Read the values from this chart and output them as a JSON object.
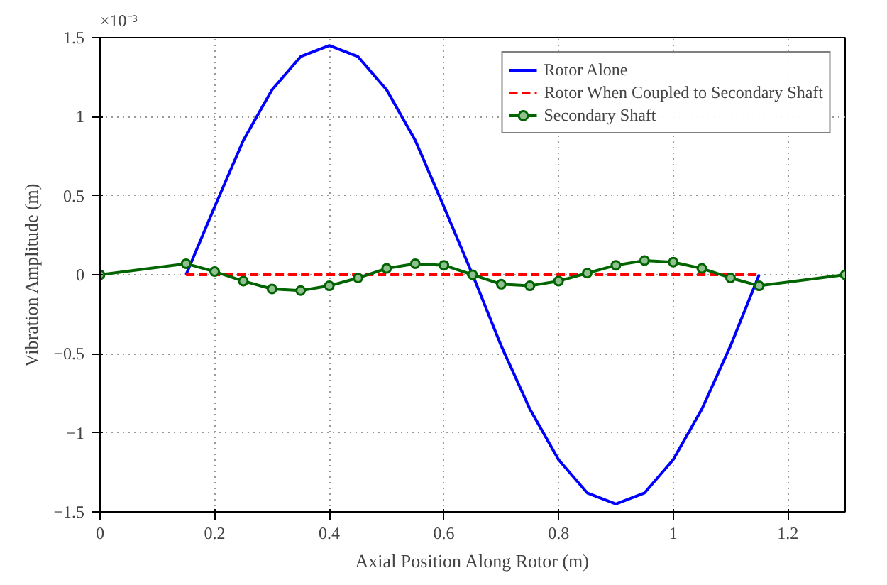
{
  "chart_data": {
    "type": "line",
    "xlabel": "Axial Position Along Rotor (m)",
    "ylabel": "Vibration Amplitude (m)",
    "annotations": [
      "×10⁻³"
    ],
    "xlim": [
      0,
      1.3
    ],
    "xticks": [
      0,
      0.2,
      0.4,
      0.6,
      0.8,
      1,
      1.2
    ],
    "ylim": [
      -1.5,
      1.5
    ],
    "yticks": [
      -1.5,
      -1,
      -0.5,
      0,
      0.5,
      1,
      1.5
    ],
    "grid": true,
    "legend": "top right",
    "series": [
      {
        "name": "Rotor Alone",
        "color": "#0000ff",
        "marker": "none",
        "line_style": "solid",
        "x": [
          0.15,
          0.2,
          0.25,
          0.3,
          0.35,
          0.4,
          0.45,
          0.5,
          0.55,
          0.6,
          0.65,
          0.7,
          0.75,
          0.8,
          0.85,
          0.9,
          0.95,
          1.0,
          1.05,
          1.1,
          1.15
        ],
        "values": [
          0,
          0.43,
          0.85,
          1.17,
          1.38,
          1.45,
          1.38,
          1.17,
          0.85,
          0.43,
          0,
          -0.45,
          -0.85,
          -1.17,
          -1.38,
          -1.45,
          -1.38,
          -1.17,
          -0.85,
          -0.45,
          0
        ]
      },
      {
        "name": "Rotor When Coupled to Secondary Shaft",
        "color": "#ff0000",
        "marker": "none",
        "line_style": "dashed",
        "x": [
          0.15,
          0.4,
          0.65,
          0.9,
          1.15
        ],
        "values": [
          0,
          0,
          0,
          0,
          0
        ]
      },
      {
        "name": "Secondary Shaft",
        "color": "#006400",
        "marker": "circle",
        "line_style": "solid",
        "x": [
          0,
          0.15,
          0.2,
          0.25,
          0.3,
          0.35,
          0.4,
          0.45,
          0.5,
          0.55,
          0.6,
          0.65,
          0.7,
          0.75,
          0.8,
          0.85,
          0.9,
          0.95,
          1.0,
          1.05,
          1.1,
          1.15,
          1.3
        ],
        "values": [
          0,
          0.07,
          0.02,
          -0.04,
          -0.09,
          -0.1,
          -0.07,
          -0.02,
          0.04,
          0.07,
          0.06,
          0,
          -0.06,
          -0.07,
          -0.04,
          0.01,
          0.06,
          0.09,
          0.08,
          0.04,
          -0.02,
          -0.07,
          0
        ]
      }
    ]
  }
}
